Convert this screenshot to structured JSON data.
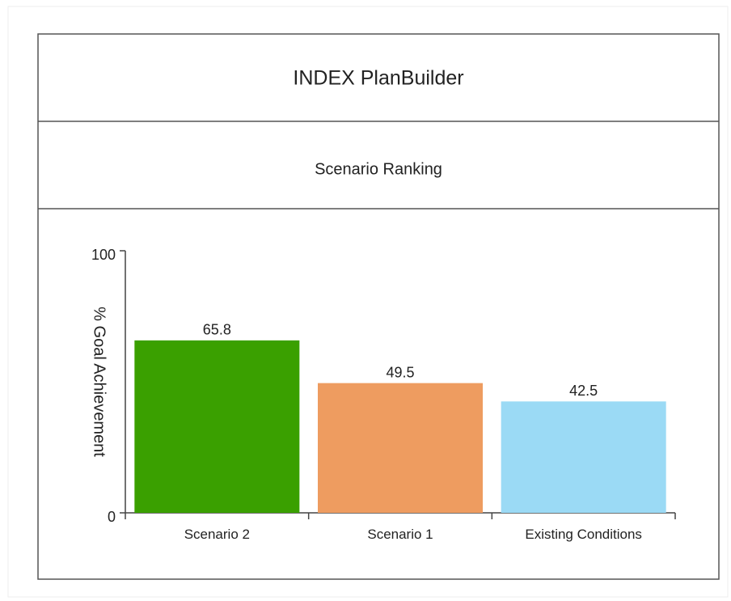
{
  "header": {
    "title": "INDEX PlanBuilder"
  },
  "chart_data": {
    "type": "bar",
    "title": "Scenario Ranking",
    "ylabel": "% Goal Achievement",
    "categories": [
      "Scenario 2",
      "Scenario 1",
      "Existing Conditions"
    ],
    "values": [
      65.8,
      49.5,
      42.5
    ],
    "colors": [
      "#3aa000",
      "#ee9c60",
      "#9bdaf5"
    ],
    "ylim": [
      0,
      100
    ],
    "yticks": [
      0,
      100
    ],
    "grid": false
  }
}
